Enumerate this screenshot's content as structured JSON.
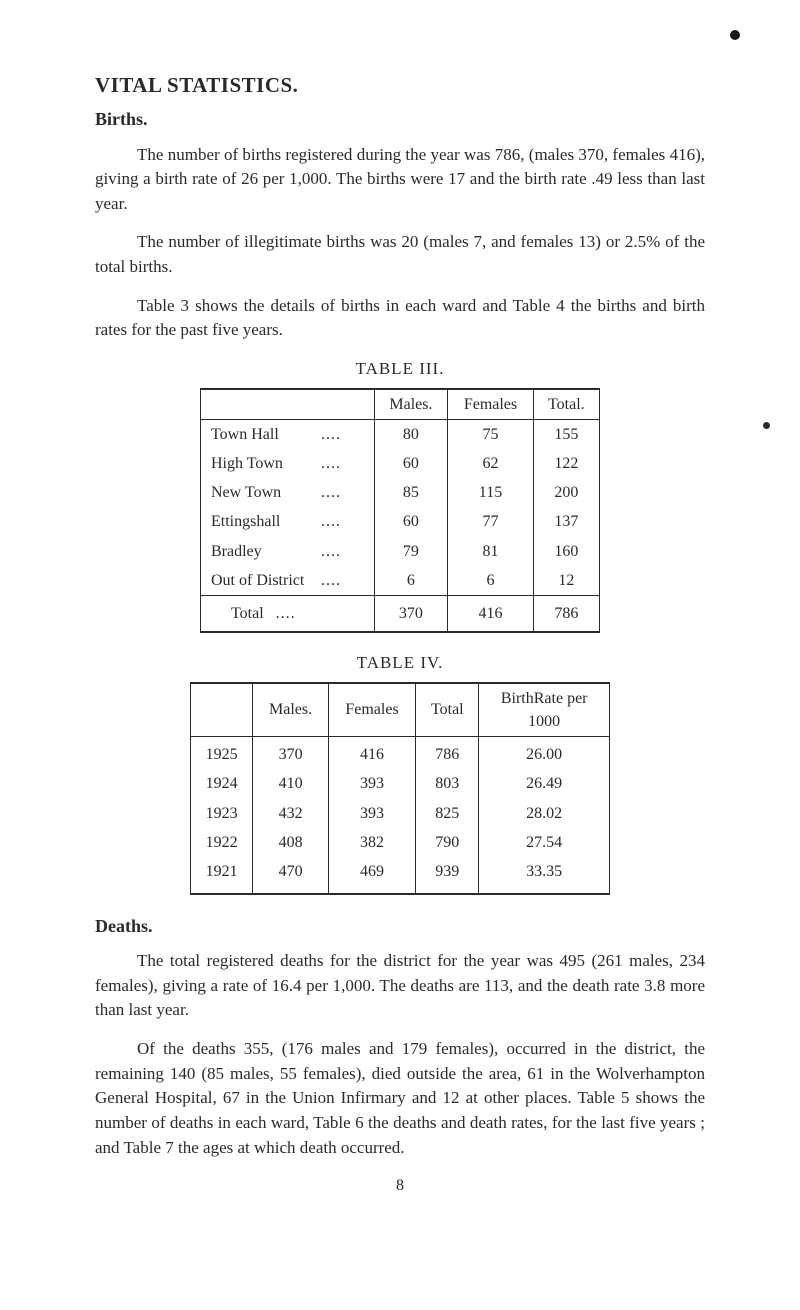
{
  "heading": "VITAL STATISTICS.",
  "births": {
    "title": "Births.",
    "p1": "The number of births registered during the year was 786, (males 370, females 416), giving a birth rate of 26 per 1,000. The births were 17 and the birth rate .49 less than last year.",
    "p2": "The number of illegitimate births was 20 (males 7, and females 13) or 2.5% of the total births.",
    "p3": "Table 3 shows the details of births in each ward and Table 4 the births and birth rates for the past five years."
  },
  "table3": {
    "caption": "TABLE III.",
    "headers": [
      "",
      "Males.",
      "Females",
      "Total."
    ],
    "rows": [
      {
        "label": "Town Hall",
        "m": "80",
        "f": "75",
        "t": "155"
      },
      {
        "label": "High Town",
        "m": "60",
        "f": "62",
        "t": "122"
      },
      {
        "label": "New Town",
        "m": "85",
        "f": "115",
        "t": "200"
      },
      {
        "label": "Ettingshall",
        "m": "60",
        "f": "77",
        "t": "137"
      },
      {
        "label": "Bradley",
        "m": "79",
        "f": "81",
        "t": "160"
      },
      {
        "label": "Out of District",
        "m": "6",
        "f": "6",
        "t": "12"
      }
    ],
    "total": {
      "label": "Total",
      "m": "370",
      "f": "416",
      "t": "786"
    }
  },
  "table4": {
    "caption": "TABLE IV.",
    "headers": [
      "",
      "Males.",
      "Females",
      "Total",
      "BirthRate per 1000"
    ],
    "rows": [
      {
        "y": "1925",
        "m": "370",
        "f": "416",
        "t": "786",
        "r": "26.00"
      },
      {
        "y": "1924",
        "m": "410",
        "f": "393",
        "t": "803",
        "r": "26.49"
      },
      {
        "y": "1923",
        "m": "432",
        "f": "393",
        "t": "825",
        "r": "28.02"
      },
      {
        "y": "1922",
        "m": "408",
        "f": "382",
        "t": "790",
        "r": "27.54"
      },
      {
        "y": "1921",
        "m": "470",
        "f": "469",
        "t": "939",
        "r": "33.35"
      }
    ]
  },
  "deaths": {
    "title": "Deaths.",
    "p1": "The total registered deaths for the district for the year was 495 (261 males, 234 females), giving a rate of 16.4 per 1,000. The deaths are 113, and the death rate 3.8 more than last year.",
    "p2": "Of the deaths 355, (176 males and 179 females), occurred in the district, the remaining 140 (85 males, 55 females), died outside the area, 61 in the Wolverhampton General Hospital, 67 in the Union Infirmary and 12 at other places. Table 5 shows the number of deaths in each ward, Table 6 the deaths and death rates, for the last five years ; and Table 7 the ages at which death occurred."
  },
  "pageNumber": "8"
}
